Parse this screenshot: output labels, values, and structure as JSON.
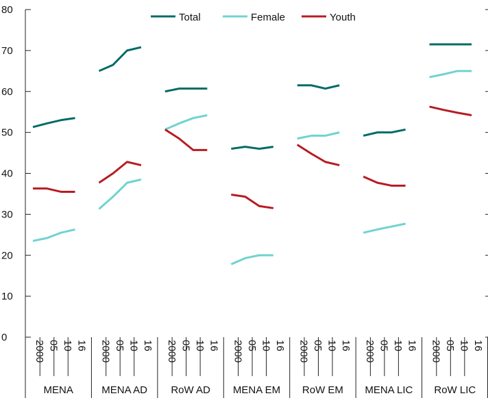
{
  "chart_data": {
    "type": "line",
    "title": "",
    "xlabel": "",
    "ylabel": "",
    "ylim": [
      0,
      80
    ],
    "yticks": [
      "0",
      "10",
      "20",
      "30",
      "40",
      "50",
      "60",
      "70",
      "80"
    ],
    "grid": false,
    "legend_position": "top-center",
    "x_tick_labels": [
      "2000",
      "05",
      "10",
      "16"
    ],
    "groups": [
      "MENA",
      "MENA AD",
      "RoW AD",
      "MENA EM",
      "RoW EM",
      "MENA LIC",
      "RoW LIC"
    ],
    "series": [
      {
        "name": "Total",
        "color": "#006b66",
        "values": [
          [
            51.3,
            52.2,
            53.0,
            53.5
          ],
          [
            65.0,
            66.5,
            70.0,
            70.8
          ],
          [
            60.0,
            60.7,
            60.7,
            60.7
          ],
          [
            46.0,
            46.5,
            46.0,
            46.5
          ],
          [
            61.5,
            61.5,
            60.7,
            61.5
          ],
          [
            49.2,
            50.0,
            50.0,
            50.7
          ],
          [
            71.5,
            71.5,
            71.5,
            71.5
          ]
        ]
      },
      {
        "name": "Female",
        "color": "#6fd3d0",
        "values": [
          [
            23.5,
            24.2,
            25.5,
            26.3
          ],
          [
            31.3,
            34.3,
            37.7,
            38.5
          ],
          [
            50.7,
            52.2,
            53.5,
            54.2
          ],
          [
            17.8,
            19.3,
            20.0,
            20.0
          ],
          [
            48.5,
            49.2,
            49.2,
            50.0
          ],
          [
            25.5,
            26.3,
            27.0,
            27.7
          ],
          [
            63.5,
            64.2,
            65.0,
            65.0
          ]
        ]
      },
      {
        "name": "Youth",
        "color": "#b71c23",
        "values": [
          [
            36.3,
            36.3,
            35.5,
            35.5
          ],
          [
            37.7,
            40.0,
            42.8,
            42.0
          ],
          [
            50.7,
            48.5,
            45.7,
            45.7
          ],
          [
            34.8,
            34.3,
            32.0,
            31.5
          ],
          [
            47.0,
            44.8,
            42.8,
            42.0
          ],
          [
            39.2,
            37.7,
            37.0,
            37.0
          ],
          [
            56.3,
            55.5,
            54.8,
            54.2
          ]
        ]
      }
    ]
  }
}
